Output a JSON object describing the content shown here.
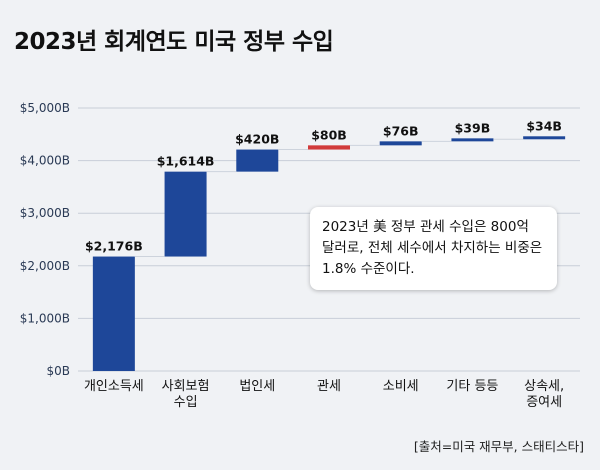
{
  "title": "2023년 회계연도 미국 정부 수입",
  "note": "2023년 美 정부 관세 수입은 800억 달러로, 전체 세수에서 차지하는 비중은 1.8% 수준이다.",
  "source": "[출처=미국 재무부, 스태티스타]",
  "colors": {
    "bar": "#1e4799",
    "highlight": "#d13b3b",
    "grid": "#c8ced8",
    "connector": "#cdd3dc"
  },
  "chart_data": {
    "type": "bar",
    "subtype": "waterfall",
    "title": "2023년 회계연도 미국 정부 수입",
    "categories": [
      [
        "개인소득세"
      ],
      [
        "사회보험",
        "수입"
      ],
      [
        "법인세"
      ],
      [
        "관세"
      ],
      [
        "소비세"
      ],
      [
        "기타 등등"
      ],
      [
        "상속세,",
        "증여세"
      ]
    ],
    "values": [
      2176,
      1614,
      420,
      80,
      76,
      39,
      34
    ],
    "value_labels": [
      "$2,176B",
      "$1,614B",
      "$420B",
      "$80B",
      "$76B",
      "$39B",
      "$34B"
    ],
    "highlight_index": 3,
    "y_ticks": [
      0,
      1000,
      2000,
      3000,
      4000,
      5000
    ],
    "y_tick_labels": [
      "$0B",
      "$1,000B",
      "$2,000B",
      "$3,000B",
      "$4,000B",
      "$5,000B"
    ],
    "ylim": [
      0,
      5000
    ],
    "grid": true
  }
}
